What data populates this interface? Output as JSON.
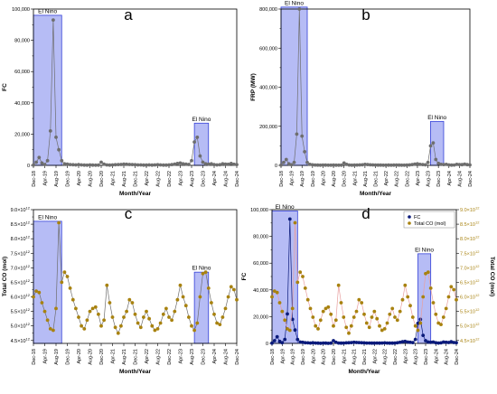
{
  "months": [
    "Dec-18",
    "Apr-19",
    "Aug-19",
    "Dec-19",
    "Apr-20",
    "Aug-20",
    "Dec-20",
    "Apr-21",
    "Aug-21",
    "Dec-21",
    "Apr-22",
    "Aug-22",
    "Dec-22",
    "Apr-23",
    "Aug-23",
    "Dec-23",
    "Apr-24",
    "Aug-24",
    "Dec-24"
  ],
  "colors": {
    "elnino_fill": "#9ea5f2",
    "elnino_stroke": "#3440d8",
    "gray_series": "#6e6e6e",
    "gold_series": "#a8820f",
    "fc_series": "#0a1a7a",
    "co_line": "#e89f9f"
  },
  "chart_data": [
    {
      "panel": "a",
      "type": "line",
      "xlabel": "Month/Year",
      "ylabel": "FC",
      "xlim": [
        0,
        72
      ],
      "ylim": [
        0,
        100000
      ],
      "yticks": [
        0,
        20000,
        40000,
        60000,
        80000,
        100000
      ],
      "ytick_labels": [
        "0",
        "20,000",
        "40,000",
        "60,000",
        "80,000",
        "100,000"
      ],
      "elnino": [
        {
          "label": "El Nino",
          "x0": 0,
          "x1": 10,
          "y1": 96000
        },
        {
          "label": "El Nino",
          "x0": 57,
          "x1": 62,
          "y1": 27000
        }
      ],
      "series": [
        {
          "color": "gray",
          "values": [
            200,
            2000,
            5000,
            1500,
            500,
            3000,
            22000,
            93000,
            18000,
            10000,
            3000,
            1000,
            800,
            500,
            400,
            300,
            500,
            300,
            200,
            100,
            300,
            200,
            100,
            200,
            2000,
            800,
            300,
            200,
            300,
            400,
            500,
            600,
            800,
            700,
            600,
            500,
            400,
            300,
            300,
            200,
            200,
            300,
            200,
            300,
            400,
            300,
            200,
            200,
            300,
            500,
            800,
            1200,
            1500,
            1000,
            800,
            600,
            3000,
            15000,
            18000,
            6000,
            2000,
            1000,
            800,
            1000,
            500,
            300,
            400,
            1000,
            800,
            700,
            1200,
            700,
            500
          ]
        }
      ]
    },
    {
      "panel": "b",
      "type": "line",
      "xlabel": "Month/Year",
      "ylabel": "FRP (MW)",
      "xlim": [
        0,
        72
      ],
      "ylim": [
        0,
        800000
      ],
      "yticks": [
        0,
        200000,
        400000,
        600000,
        800000
      ],
      "ytick_labels": [
        "0",
        "200,000",
        "400,000",
        "600,000",
        "800,000"
      ],
      "elnino": [
        {
          "label": "El Nino",
          "x0": 0,
          "x1": 10,
          "y1": 810000
        },
        {
          "label": "El Nino",
          "x0": 57,
          "x1": 62,
          "y1": 225000
        }
      ],
      "series": [
        {
          "color": "gray",
          "values": [
            1000,
            15000,
            30000,
            8000,
            3000,
            15000,
            160000,
            800000,
            150000,
            70000,
            15000,
            5000,
            3000,
            2000,
            1500,
            1000,
            2000,
            1500,
            1000,
            800,
            1500,
            1000,
            800,
            1000,
            12000,
            5000,
            2000,
            1000,
            1500,
            2000,
            2500,
            3000,
            5000,
            4000,
            3000,
            2500,
            2000,
            1500,
            1500,
            1000,
            1000,
            1500,
            1000,
            1500,
            2000,
            1500,
            1000,
            1000,
            1500,
            2500,
            4000,
            6000,
            8000,
            5000,
            4000,
            3000,
            15000,
            100000,
            115000,
            30000,
            10000,
            5000,
            4000,
            5000,
            2500,
            1500,
            2000,
            5000,
            4000,
            3500,
            6000,
            3500,
            2500
          ]
        }
      ]
    },
    {
      "panel": "c",
      "type": "line",
      "xlabel": "Month/Year",
      "ylabel": "Total CO (mol)",
      "xlim": [
        0,
        72
      ],
      "ylim": [
        4400000000000.0,
        9000000000000.0
      ],
      "yticks": [
        4500000000000.0,
        5000000000000.0,
        5500000000000.0,
        6000000000000.0,
        6500000000000.0,
        7000000000000.0,
        7500000000000.0,
        8000000000000.0,
        8500000000000.0,
        9000000000000.0
      ],
      "ytick_labels": [
        "4.5×10¹²",
        "5.0×10¹²",
        "5.5×10¹²",
        "6.0×10¹²",
        "6.5×10¹²",
        "7.0×10¹²",
        "7.5×10¹²",
        "8.0×10¹²",
        "8.5×10¹²",
        "9.0×10¹²"
      ],
      "elnino": [
        {
          "label": "El Nino",
          "x0": 0,
          "x1": 10,
          "y1": 8600000000000.0
        },
        {
          "label": "El Nino",
          "x0": 57,
          "x1": 62,
          "y1": 6850000000000.0
        }
      ],
      "series": [
        {
          "color": "gold",
          "values": [
            6000000000000.0,
            6200000000000.0,
            6150000000000.0,
            5800000000000.0,
            5500000000000.0,
            5200000000000.0,
            4900000000000.0,
            4850000000000.0,
            5600000000000.0,
            8550000000000.0,
            6500000000000.0,
            6850000000000.0,
            6700000000000.0,
            6300000000000.0,
            5900000000000.0,
            5600000000000.0,
            5300000000000.0,
            5000000000000.0,
            4900000000000.0,
            5200000000000.0,
            5500000000000.0,
            5600000000000.0,
            5650000000000.0,
            5400000000000.0,
            5000000000000.0,
            5200000000000.0,
            6400000000000.0,
            5800000000000.0,
            5300000000000.0,
            4950000000000.0,
            4750000000000.0,
            5000000000000.0,
            5300000000000.0,
            5500000000000.0,
            5900000000000.0,
            5800000000000.0,
            5400000000000.0,
            5100000000000.0,
            4950000000000.0,
            5300000000000.0,
            5500000000000.0,
            5250000000000.0,
            5000000000000.0,
            4850000000000.0,
            4900000000000.0,
            5100000000000.0,
            5400000000000.0,
            5600000000000.0,
            5300000000000.0,
            5200000000000.0,
            5500000000000.0,
            5900000000000.0,
            6400000000000.0,
            6000000000000.0,
            5700000000000.0,
            5300000000000.0,
            5000000000000.0,
            4850000000000.0,
            5100000000000.0,
            6000000000000.0,
            6800000000000.0,
            6850000000000.0,
            6300000000000.0,
            5800000000000.0,
            5400000000000.0,
            5100000000000.0,
            5050000000000.0,
            5300000000000.0,
            5600000000000.0,
            6000000000000.0,
            6350000000000.0,
            6250000000000.0,
            5900000000000.0
          ]
        }
      ]
    },
    {
      "panel": "d",
      "type": "line",
      "xlabel": "Month/Year",
      "ylabel": "FC",
      "ylabel_right": "Total CO (mol)",
      "xlim": [
        0,
        72
      ],
      "ylim": [
        0,
        100000
      ],
      "ylim_right": [
        4400000000000.0,
        9000000000000.0
      ],
      "yticks": [
        0,
        20000,
        40000,
        60000,
        80000,
        100000
      ],
      "ytick_labels": [
        "0",
        "20,000",
        "40,000",
        "60,000",
        "80,000",
        "100,000"
      ],
      "yticks_right": [
        4500000000000.0,
        5000000000000.0,
        5500000000000.0,
        6000000000000.0,
        6500000000000.0,
        7000000000000.0,
        7500000000000.0,
        8000000000000.0,
        8500000000000.0,
        9000000000000.0
      ],
      "ytick_labels_right": [
        "4.5×10¹²",
        "5.0×10¹²",
        "5.5×10¹²",
        "6.0×10¹²",
        "6.5×10¹²",
        "7.0×10¹²",
        "7.5×10¹²",
        "8.0×10¹²",
        "8.5×10¹²",
        "9.0×10¹²"
      ],
      "legend": "top-right",
      "elnino": [
        {
          "label": "El Nino",
          "x0": 0,
          "x1": 10,
          "y1": 99000
        },
        {
          "label": "El Nino",
          "x0": 57,
          "x1": 62,
          "y1": 67000
        }
      ],
      "series": [
        {
          "name": "FC",
          "color": "fc",
          "values": [
            200,
            2000,
            5000,
            1500,
            500,
            3000,
            22000,
            93000,
            18000,
            10000,
            3000,
            1000,
            800,
            500,
            400,
            300,
            500,
            300,
            200,
            100,
            300,
            200,
            100,
            200,
            2000,
            800,
            300,
            200,
            300,
            400,
            500,
            600,
            800,
            700,
            600,
            500,
            400,
            300,
            300,
            200,
            200,
            300,
            200,
            300,
            400,
            300,
            200,
            200,
            300,
            500,
            800,
            1200,
            1500,
            1000,
            800,
            600,
            3000,
            15000,
            18000,
            6000,
            2000,
            1000,
            800,
            1000,
            500,
            300,
            400,
            1000,
            800,
            700,
            1200,
            700,
            500
          ]
        },
        {
          "name": "Total CO (mol)",
          "color": "co",
          "axis": "right",
          "values": [
            6000000000000.0,
            6200000000000.0,
            6150000000000.0,
            5800000000000.0,
            5500000000000.0,
            5200000000000.0,
            4900000000000.0,
            4850000000000.0,
            5600000000000.0,
            8550000000000.0,
            6500000000000.0,
            6850000000000.0,
            6700000000000.0,
            6300000000000.0,
            5900000000000.0,
            5600000000000.0,
            5300000000000.0,
            5000000000000.0,
            4900000000000.0,
            5200000000000.0,
            5500000000000.0,
            5600000000000.0,
            5650000000000.0,
            5400000000000.0,
            5000000000000.0,
            5200000000000.0,
            6400000000000.0,
            5800000000000.0,
            5300000000000.0,
            4950000000000.0,
            4750000000000.0,
            5000000000000.0,
            5300000000000.0,
            5500000000000.0,
            5900000000000.0,
            5800000000000.0,
            5400000000000.0,
            5100000000000.0,
            4950000000000.0,
            5300000000000.0,
            5500000000000.0,
            5250000000000.0,
            5000000000000.0,
            4850000000000.0,
            4900000000000.0,
            5100000000000.0,
            5400000000000.0,
            5600000000000.0,
            5300000000000.0,
            5200000000000.0,
            5500000000000.0,
            5900000000000.0,
            6400000000000.0,
            6000000000000.0,
            5700000000000.0,
            5300000000000.0,
            5000000000000.0,
            4850000000000.0,
            5100000000000.0,
            6000000000000.0,
            6800000000000.0,
            6850000000000.0,
            6300000000000.0,
            5800000000000.0,
            5400000000000.0,
            5100000000000.0,
            5050000000000.0,
            5300000000000.0,
            5600000000000.0,
            6000000000000.0,
            6350000000000.0,
            6250000000000.0,
            5900000000000.0
          ]
        }
      ]
    }
  ]
}
